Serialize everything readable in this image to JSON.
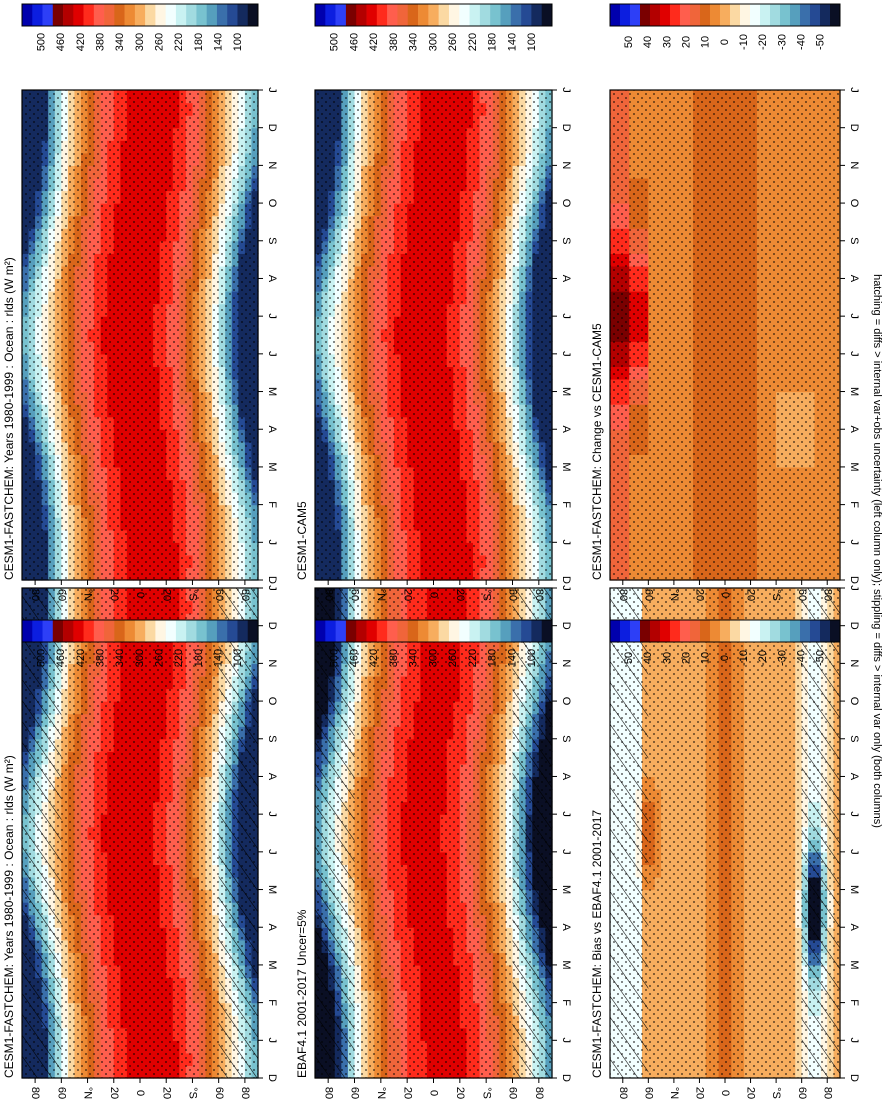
{
  "footnote": "hatching = diffs > internal var+obs uncertainty (left column only); stippling = diffs > internal var only (both columns)",
  "months": [
    "D",
    "J",
    "F",
    "M",
    "A",
    "M",
    "J",
    "J",
    "A",
    "S",
    "O",
    "N",
    "D",
    "J"
  ],
  "latitude_labels": [
    "80",
    "60",
    "°N",
    "20",
    "0",
    "20",
    "°S",
    "60",
    "80"
  ],
  "colorbar_abs": {
    "labels": [
      "500",
      "460",
      "420",
      "380",
      "340",
      "300",
      "260",
      "220",
      "180",
      "140",
      "100"
    ],
    "colors": [
      "#0000ad",
      "#0c1ee0",
      "#2d3ff7",
      "#7a0000",
      "#b30000",
      "#e00000",
      "#ff2b1c",
      "#ff5e4d",
      "#f0653a",
      "#d9661a",
      "#ed8a34",
      "#f7ad5e",
      "#fbd9a3",
      "#fff6e3",
      "#f2ffff",
      "#c9f2f2",
      "#a1dbe0",
      "#78c2cf",
      "#569fbd",
      "#3a6fab",
      "#254a94",
      "#142a5e",
      "#0a0f24"
    ]
  },
  "colorbar_diff": {
    "labels": [
      "50",
      "40",
      "30",
      "20",
      "10",
      "0",
      "-10",
      "-20",
      "-30",
      "-40",
      "-50"
    ],
    "colors": [
      "#0000ad",
      "#0c1ee0",
      "#2d3ff7",
      "#7a0000",
      "#b30000",
      "#e00000",
      "#ff2b1c",
      "#ff5e4d",
      "#f0653a",
      "#d9661a",
      "#ed8a34",
      "#f7ad5e",
      "#fbd9a3",
      "#fff6e3",
      "#f2ffff",
      "#c9f2f2",
      "#a1dbe0",
      "#78c2cf",
      "#569fbd",
      "#3a6fab",
      "#254a94",
      "#142a5e",
      "#0a0f24"
    ]
  },
  "chart_data": [
    {
      "type": "heatmap",
      "title": "CESM1-FASTCHEM: Years 1980-1999 : Ocean : rlds (W m²)",
      "kind": "abs",
      "overlay": "hatch+stipple",
      "x": "months",
      "y": "latitude",
      "range": [
        100,
        500
      ],
      "pattern": "zonal-mean seasonal cycle; maxima ~420 near equator, minima ~140-180 at high latitudes (winter hemisphere)"
    },
    {
      "type": "heatmap",
      "title": "CESM1-FASTCHEM: Years 1980-1999 : Ocean : rlds (W m²)",
      "kind": "abs",
      "overlay": "stipple",
      "x": "months",
      "y": "latitude",
      "range": [
        100,
        500
      ]
    },
    {
      "type": "heatmap",
      "title": "EBAF4.1 2001-2017 Uncer=5%",
      "kind": "abs",
      "overlay": "hatch+stipple",
      "x": "months",
      "y": "latitude",
      "range": [
        100,
        500
      ]
    },
    {
      "type": "heatmap",
      "title": "CESM1-CAM5",
      "kind": "abs",
      "overlay": "stipple",
      "x": "months",
      "y": "latitude",
      "range": [
        100,
        500
      ]
    },
    {
      "type": "heatmap",
      "title": "CESM1-FASTCHEM: Bias vs EBAF4.1 2001-2017",
      "kind": "diff",
      "overlay": "hatch+stipple",
      "x": "months",
      "y": "latitude",
      "range": [
        -50,
        50
      ],
      "pattern": "mostly small biases; positive ~+10 near equator and 60N summer; strong negative (-30 to -50) near 60-80S in Apr-Jun"
    },
    {
      "type": "heatmap",
      "title": "CESM1-FASTCHEM: Change vs CESM1-CAM5",
      "kind": "diff",
      "overlay": "stipple",
      "x": "months",
      "y": "latitude",
      "range": [
        -50,
        50
      ],
      "pattern": "small positive changes (0-10) broadly; +20 to +30 at 80N in Jun-Aug"
    }
  ]
}
